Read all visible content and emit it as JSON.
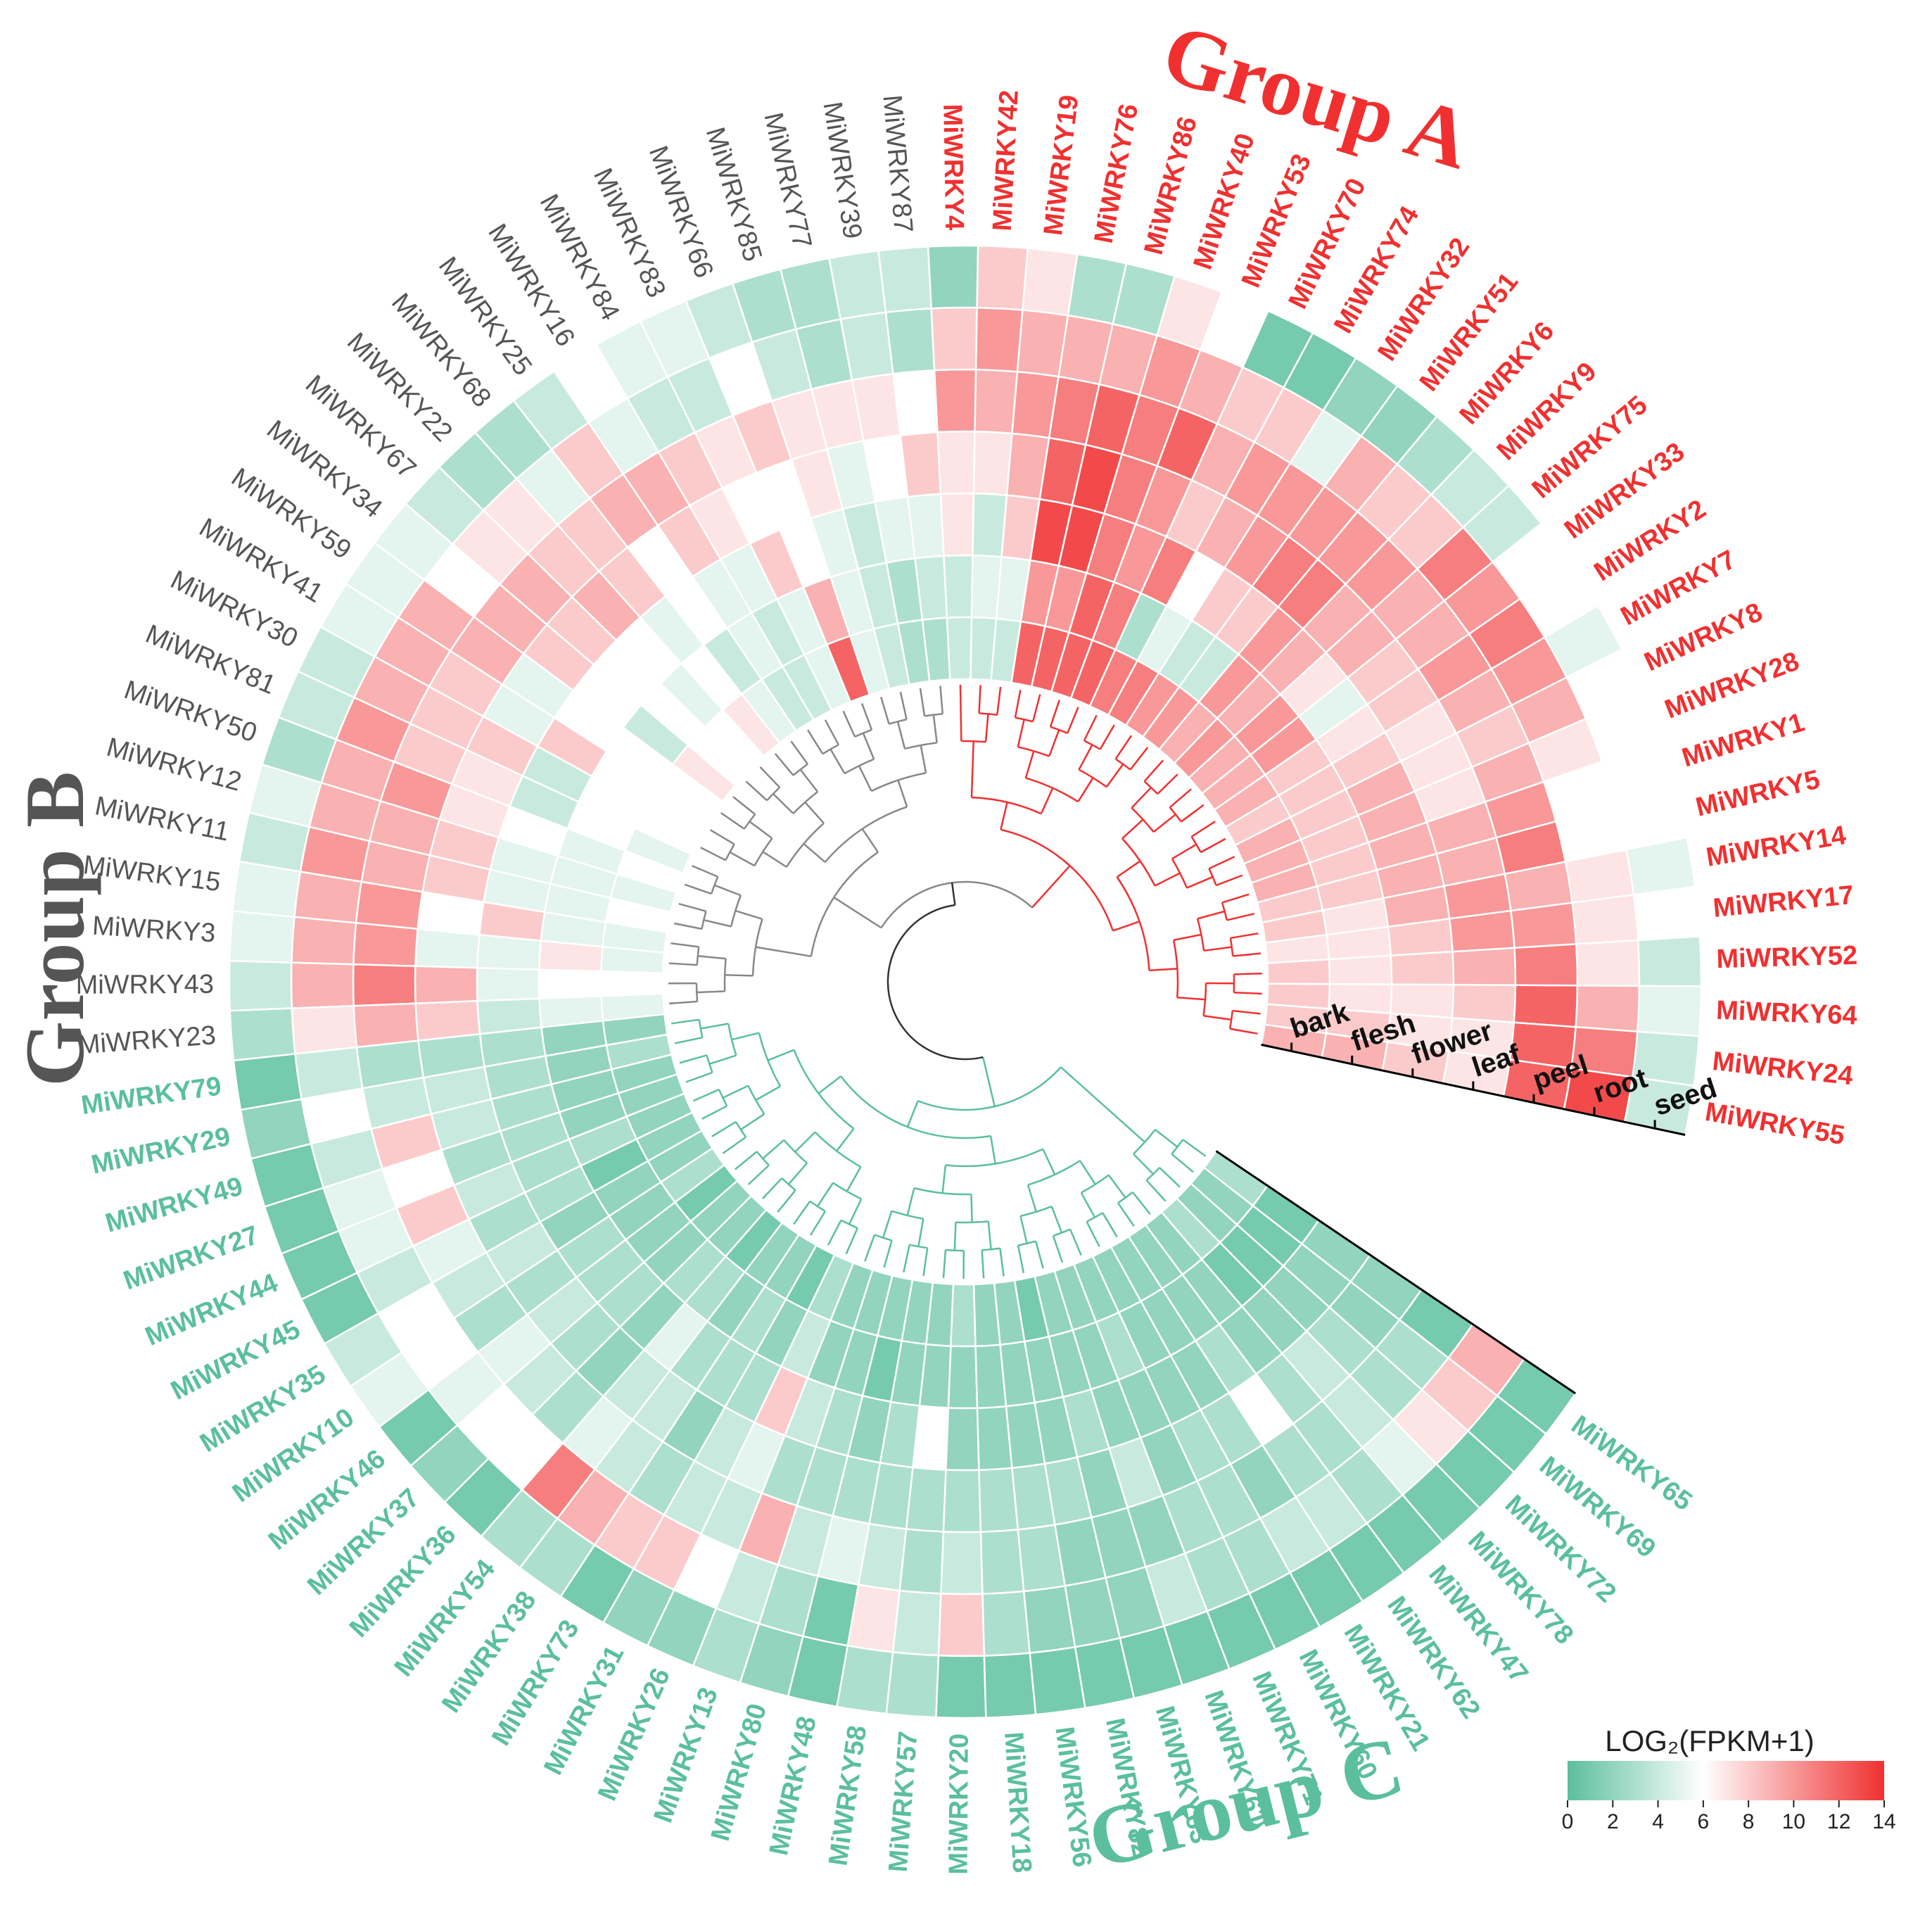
{
  "chart_data": {
    "type": "heatmap",
    "layout": "circular",
    "tissues": [
      "bark",
      "flesh",
      "flower",
      "leaf",
      "peel",
      "root",
      "seed"
    ],
    "legend": {
      "title": "LOG₂(FPKM+1)",
      "range": [
        0,
        14
      ],
      "ticks": [
        "0",
        "2",
        "4",
        "6",
        "8",
        "10",
        "12",
        "14"
      ],
      "colors": [
        "#5bbf9c",
        "#ffffff",
        "#f03030"
      ]
    },
    "group_colors": {
      "A": "#f03030",
      "B": "#555555",
      "C": "#5bbf9c"
    },
    "groups": [
      {
        "id": "A",
        "title": "Group A"
      },
      {
        "id": "B",
        "title": "Group B"
      },
      {
        "id": "C",
        "title": "Group C"
      }
    ],
    "genes": [
      {
        "name": "MiWRKY55",
        "group": "A",
        "values": [
          9,
          9,
          8,
          7,
          12,
          13,
          4
        ]
      },
      {
        "name": "MiWRKY24",
        "group": "A",
        "values": [
          8,
          8,
          7,
          7,
          12,
          11,
          4
        ]
      },
      {
        "name": "MiWRKY64",
        "group": "A",
        "values": [
          8,
          7,
          7,
          8,
          12,
          9,
          5
        ]
      },
      {
        "name": "MiWRKY52",
        "group": "A",
        "values": [
          8,
          7,
          8,
          9,
          11,
          7,
          4
        ]
      },
      {
        "name": "MiWRKY17",
        "group": "A",
        "values": [
          7,
          7,
          8,
          10,
          10,
          7,
          6
        ]
      },
      {
        "name": "MiWRKY14",
        "group": "A",
        "values": [
          8,
          7,
          9,
          10,
          9,
          7,
          5
        ]
      },
      {
        "name": "MiWRKY5",
        "group": "A",
        "values": [
          8,
          8,
          9,
          9,
          11,
          6,
          6
        ]
      },
      {
        "name": "MiWRKY1",
        "group": "A",
        "values": [
          9,
          8,
          9,
          9,
          10,
          6,
          6
        ]
      },
      {
        "name": "MiWRKY28",
        "group": "A",
        "values": [
          9,
          8,
          9,
          7,
          9,
          7,
          6
        ]
      },
      {
        "name": "MiWRKY8",
        "group": "A",
        "values": [
          9,
          8,
          9,
          7,
          8,
          9,
          6
        ]
      },
      {
        "name": "MiWRKY7",
        "group": "A",
        "values": [
          8,
          8,
          8,
          7,
          9,
          10,
          5
        ]
      },
      {
        "name": "MiWRKY2",
        "group": "A",
        "values": [
          9,
          8,
          7,
          8,
          10,
          11,
          6
        ]
      },
      {
        "name": "MiWRKY33",
        "group": "A",
        "values": [
          9,
          10,
          5,
          8,
          9,
          10,
          6
        ]
      },
      {
        "name": "MiWRKY75",
        "group": "A",
        "values": [
          9,
          10,
          7,
          9,
          9,
          11,
          4
        ]
      },
      {
        "name": "MiWRKY9",
        "group": "A",
        "values": [
          10,
          9,
          9,
          9,
          10,
          8,
          4
        ]
      },
      {
        "name": "MiWRKY6",
        "group": "A",
        "values": [
          9,
          10,
          10,
          11,
          10,
          8,
          3
        ]
      },
      {
        "name": "MiWRKY51",
        "group": "A",
        "values": [
          10,
          4,
          8,
          11,
          10,
          9,
          2
        ]
      },
      {
        "name": "MiWRKY32",
        "group": "A",
        "values": [
          10,
          4,
          8,
          10,
          10,
          5,
          2
        ]
      },
      {
        "name": "MiWRKY74",
        "group": "A",
        "values": [
          11,
          5,
          6,
          9,
          10,
          8,
          1
        ]
      },
      {
        "name": "MiWRKY70",
        "group": "A",
        "values": [
          11,
          3,
          11,
          8,
          9,
          8,
          1
        ]
      },
      {
        "name": "MiWRKY53",
        "group": "A",
        "values": [
          12,
          11,
          10,
          10,
          12,
          9,
          6
        ]
      },
      {
        "name": "MiWRKY40",
        "group": "A",
        "values": [
          12,
          12,
          11,
          11,
          11,
          10,
          7
        ]
      },
      {
        "name": "MiWRKY86",
        "group": "A",
        "values": [
          12,
          10,
          13,
          13,
          12,
          9,
          3
        ]
      },
      {
        "name": "MiWRKY76",
        "group": "A",
        "values": [
          12,
          10,
          13,
          12,
          11,
          9,
          3
        ]
      },
      {
        "name": "MiWRKY19",
        "group": "A",
        "values": [
          4,
          5,
          8,
          9,
          10,
          9,
          7
        ]
      },
      {
        "name": "MiWRKY42",
        "group": "A",
        "values": [
          4,
          5,
          4,
          7,
          9,
          10,
          8
        ]
      },
      {
        "name": "MiWRKY4",
        "group": "A",
        "values": [
          4,
          4,
          7,
          7,
          10,
          8,
          2
        ]
      },
      {
        "name": "MiWRKY87",
        "group": "B",
        "values": [
          3,
          4,
          5,
          8,
          6,
          3,
          4
        ]
      },
      {
        "name": "MiWRKY39",
        "group": "B",
        "values": [
          3,
          3,
          5,
          6,
          7,
          4,
          4
        ]
      },
      {
        "name": "MiWRKY77",
        "group": "B",
        "values": [
          4,
          4,
          4,
          5,
          7,
          3,
          3
        ]
      },
      {
        "name": "MiWRKY85",
        "group": "B",
        "values": [
          5,
          5,
          5,
          7,
          7,
          4,
          3
        ]
      },
      {
        "name": "MiWRKY66",
        "group": "B",
        "values": [
          12,
          9,
          6,
          6,
          8,
          6,
          4
        ]
      },
      {
        "name": "MiWRKY83",
        "group": "B",
        "values": [
          5,
          5,
          8,
          6,
          7,
          4,
          5
        ]
      },
      {
        "name": "MiWRKY84",
        "group": "B",
        "values": [
          4,
          4,
          5,
          7,
          8,
          4,
          5
        ]
      },
      {
        "name": "MiWRKY16",
        "group": "B",
        "values": [
          4,
          5,
          5,
          8,
          9,
          5,
          6
        ]
      },
      {
        "name": "MiWRKY25",
        "group": "B",
        "values": [
          5,
          4,
          6,
          6,
          9,
          8,
          4
        ]
      },
      {
        "name": "MiWRKY68",
        "group": "B",
        "values": [
          7,
          6,
          5,
          8,
          8,
          5,
          3
        ]
      },
      {
        "name": "MiWRKY22",
        "group": "B",
        "values": [
          6,
          5,
          6,
          9,
          8,
          7,
          3
        ]
      },
      {
        "name": "MiWRKY67",
        "group": "B",
        "values": [
          6,
          6,
          6,
          8,
          9,
          7,
          4
        ]
      },
      {
        "name": "MiWRKY34",
        "group": "B",
        "values": [
          7,
          4,
          6,
          8,
          9,
          6,
          5
        ]
      },
      {
        "name": "MiWRKY59",
        "group": "B",
        "values": [
          6,
          6,
          6,
          5,
          9,
          9,
          5
        ]
      },
      {
        "name": "MiWRKY41",
        "group": "B",
        "values": [
          6,
          6,
          8,
          5,
          8,
          9,
          5
        ]
      },
      {
        "name": "MiWRKY30",
        "group": "B",
        "values": [
          6,
          6,
          4,
          8,
          8,
          9,
          4
        ]
      },
      {
        "name": "MiWRKY81",
        "group": "B",
        "values": [
          5,
          6,
          4,
          7,
          8,
          10,
          4
        ]
      },
      {
        "name": "MiWRKY50",
        "group": "B",
        "values": [
          6,
          5,
          6,
          7,
          10,
          9,
          3
        ]
      },
      {
        "name": "MiWRKY12",
        "group": "B",
        "values": [
          5,
          5,
          5,
          8,
          9,
          9,
          5
        ]
      },
      {
        "name": "MiWRKY11",
        "group": "B",
        "values": [
          6,
          5,
          5,
          8,
          9,
          10,
          4
        ]
      },
      {
        "name": "MiWRKY15",
        "group": "B",
        "values": [
          5,
          5,
          8,
          6,
          10,
          9,
          5
        ]
      },
      {
        "name": "MiWRKY3",
        "group": "B",
        "values": [
          5,
          7,
          5,
          5,
          10,
          9,
          5
        ]
      },
      {
        "name": "MiWRKY43",
        "group": "B",
        "values": [
          6,
          6,
          5,
          9,
          11,
          9,
          4
        ]
      },
      {
        "name": "MiWRKY23",
        "group": "B",
        "values": [
          5,
          5,
          4,
          8,
          9,
          7,
          3
        ]
      },
      {
        "name": "MiWRKY79",
        "group": "C",
        "values": [
          2,
          2,
          3,
          3,
          3,
          4,
          1
        ]
      },
      {
        "name": "MiWRKY29",
        "group": "C",
        "values": [
          3,
          2,
          3,
          4,
          4,
          6,
          2
        ]
      },
      {
        "name": "MiWRKY49",
        "group": "C",
        "values": [
          2,
          2,
          3,
          4,
          8,
          4,
          1
        ]
      },
      {
        "name": "MiWRKY27",
        "group": "C",
        "values": [
          2,
          2,
          3,
          3,
          6,
          5,
          1
        ]
      },
      {
        "name": "MiWRKY44",
        "group": "C",
        "values": [
          2,
          3,
          3,
          4,
          8,
          5,
          1
        ]
      },
      {
        "name": "MiWRKY45",
        "group": "C",
        "values": [
          2,
          1,
          3,
          3,
          5,
          4,
          1
        ]
      },
      {
        "name": "MiWRKY35",
        "group": "C",
        "values": [
          2,
          2,
          2,
          4,
          4,
          6,
          4
        ]
      },
      {
        "name": "MiWRKY10",
        "group": "C",
        "values": [
          3,
          2,
          3,
          3,
          3,
          6,
          5
        ]
      },
      {
        "name": "MiWRKY46",
        "group": "C",
        "values": [
          1,
          2,
          3,
          4,
          5,
          5,
          1
        ]
      },
      {
        "name": "MiWRKY37",
        "group": "C",
        "values": [
          2,
          2,
          3,
          3,
          4,
          6,
          2
        ]
      },
      {
        "name": "MiWRKY36",
        "group": "C",
        "values": [
          2,
          3,
          2,
          2,
          3,
          6,
          1
        ]
      },
      {
        "name": "MiWRKY54",
        "group": "C",
        "values": [
          1,
          3,
          5,
          4,
          5,
          11,
          3
        ]
      },
      {
        "name": "MiWRKY38",
        "group": "C",
        "values": [
          2,
          2,
          3,
          4,
          4,
          9,
          3
        ]
      },
      {
        "name": "MiWRKY73",
        "group": "C",
        "values": [
          2,
          3,
          3,
          2,
          3,
          8,
          1
        ]
      },
      {
        "name": "MiWRKY31",
        "group": "C",
        "values": [
          1,
          2,
          3,
          4,
          4,
          8,
          2
        ]
      },
      {
        "name": "MiWRKY26",
        "group": "C",
        "values": [
          3,
          4,
          8,
          5,
          4,
          6,
          2
        ]
      },
      {
        "name": "MiWRKY13",
        "group": "C",
        "values": [
          2,
          2,
          4,
          3,
          9,
          4,
          3
        ]
      },
      {
        "name": "MiWRKY80",
        "group": "C",
        "values": [
          2,
          2,
          3,
          3,
          4,
          3,
          2
        ]
      },
      {
        "name": "MiWRKY48",
        "group": "C",
        "values": [
          2,
          1,
          2,
          3,
          5,
          1,
          1
        ]
      },
      {
        "name": "MiWRKY58",
        "group": "C",
        "values": [
          2,
          2,
          3,
          3,
          4,
          7,
          3
        ]
      },
      {
        "name": "MiWRKY57",
        "group": "C",
        "values": [
          2,
          2,
          6,
          3,
          3,
          4,
          3
        ]
      },
      {
        "name": "MiWRKY20",
        "group": "C",
        "values": [
          3,
          2,
          2,
          3,
          4,
          8,
          1
        ]
      },
      {
        "name": "MiWRKY18",
        "group": "C",
        "values": [
          2,
          2,
          2,
          3,
          3,
          3,
          1
        ]
      },
      {
        "name": "MiWRKY56",
        "group": "C",
        "values": [
          2,
          2,
          2,
          3,
          3,
          2,
          1
        ]
      },
      {
        "name": "MiWRKY82",
        "group": "C",
        "values": [
          1,
          2,
          2,
          3,
          2,
          2,
          1
        ]
      },
      {
        "name": "MiWRKY63",
        "group": "C",
        "values": [
          2,
          2,
          3,
          2,
          2,
          2,
          1
        ]
      },
      {
        "name": "MiWRKY61",
        "group": "C",
        "values": [
          2,
          2,
          2,
          4,
          2,
          4,
          1
        ]
      },
      {
        "name": "MiWRKY71",
        "group": "C",
        "values": [
          2,
          3,
          2,
          2,
          3,
          3,
          1
        ]
      },
      {
        "name": "MiWRKY60",
        "group": "C",
        "values": [
          2,
          2,
          2,
          3,
          3,
          3,
          1
        ]
      },
      {
        "name": "MiWRKY21",
        "group": "C",
        "values": [
          2,
          2,
          2,
          3,
          2,
          4,
          1
        ]
      },
      {
        "name": "MiWRKY62",
        "group": "C",
        "values": [
          2,
          2,
          3,
          6,
          3,
          4,
          1
        ]
      },
      {
        "name": "MiWRKY47",
        "group": "C",
        "values": [
          2,
          2,
          2,
          3,
          3,
          3,
          1
        ]
      },
      {
        "name": "MiWRKY78",
        "group": "C",
        "values": [
          3,
          1,
          2,
          4,
          4,
          5,
          1
        ]
      },
      {
        "name": "MiWRKY72",
        "group": "C",
        "values": [
          2,
          1,
          2,
          3,
          3,
          7,
          1
        ]
      },
      {
        "name": "MiWRKY69",
        "group": "C",
        "values": [
          2,
          1,
          2,
          2,
          3,
          8,
          1
        ]
      },
      {
        "name": "MiWRKY65",
        "group": "C",
        "values": [
          3,
          1,
          2,
          2,
          1,
          9,
          1
        ]
      }
    ]
  }
}
